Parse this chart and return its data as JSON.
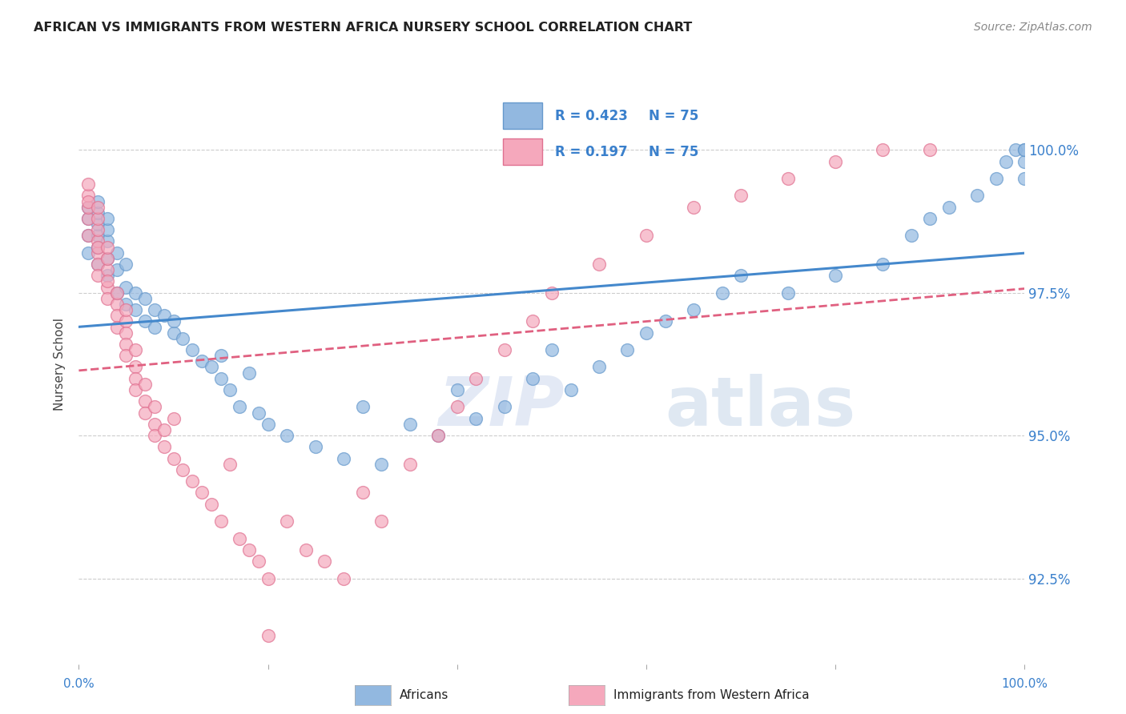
{
  "title": "AFRICAN VS IMMIGRANTS FROM WESTERN AFRICA NURSERY SCHOOL CORRELATION CHART",
  "source": "Source: ZipAtlas.com",
  "ylabel": "Nursery School",
  "ytick_values": [
    100.0,
    97.5,
    95.0,
    92.5
  ],
  "xlim": [
    0.0,
    100.0
  ],
  "ylim": [
    91.0,
    101.5
  ],
  "legend_entries": [
    "Africans",
    "Immigrants from Western Africa"
  ],
  "R_african": 0.423,
  "N_african": 75,
  "R_immigrant": 0.197,
  "N_immigrant": 75,
  "watermark_zip": "ZIP",
  "watermark_atlas": "atlas",
  "african_color": "#92b8e0",
  "african_edge_color": "#6699cc",
  "immigrant_color": "#f5a8bc",
  "immigrant_edge_color": "#e07090",
  "african_line_color": "#4488cc",
  "immigrant_line_color": "#e06080",
  "african_points_x": [
    1,
    1,
    1,
    1,
    2,
    2,
    2,
    2,
    2,
    2,
    3,
    3,
    3,
    3,
    3,
    4,
    4,
    4,
    5,
    5,
    5,
    6,
    6,
    7,
    7,
    8,
    8,
    9,
    10,
    10,
    11,
    12,
    13,
    14,
    15,
    15,
    16,
    17,
    18,
    19,
    20,
    22,
    25,
    28,
    30,
    32,
    35,
    38,
    40,
    42,
    45,
    48,
    50,
    52,
    55,
    58,
    60,
    62,
    65,
    68,
    70,
    75,
    80,
    85,
    88,
    90,
    92,
    95,
    97,
    98,
    99,
    100,
    100,
    100,
    100
  ],
  "african_points_y": [
    98.2,
    98.5,
    98.8,
    99.0,
    98.0,
    98.3,
    98.5,
    98.7,
    98.9,
    99.1,
    97.8,
    98.1,
    98.4,
    98.6,
    98.8,
    97.5,
    97.9,
    98.2,
    97.3,
    97.6,
    98.0,
    97.2,
    97.5,
    97.0,
    97.4,
    96.9,
    97.2,
    97.1,
    96.8,
    97.0,
    96.7,
    96.5,
    96.3,
    96.2,
    96.0,
    96.4,
    95.8,
    95.5,
    96.1,
    95.4,
    95.2,
    95.0,
    94.8,
    94.6,
    95.5,
    94.5,
    95.2,
    95.0,
    95.8,
    95.3,
    95.5,
    96.0,
    96.5,
    95.8,
    96.2,
    96.5,
    96.8,
    97.0,
    97.2,
    97.5,
    97.8,
    97.5,
    97.8,
    98.0,
    98.5,
    98.8,
    99.0,
    99.2,
    99.5,
    99.8,
    100.0,
    99.5,
    99.8,
    100.0,
    100.0
  ],
  "immigrant_points_x": [
    1,
    1,
    1,
    1,
    1,
    1,
    2,
    2,
    2,
    2,
    2,
    2,
    2,
    2,
    3,
    3,
    3,
    3,
    3,
    3,
    4,
    4,
    4,
    4,
    5,
    5,
    5,
    5,
    5,
    6,
    6,
    6,
    6,
    7,
    7,
    7,
    8,
    8,
    8,
    9,
    9,
    10,
    10,
    11,
    12,
    13,
    14,
    15,
    16,
    17,
    18,
    19,
    20,
    22,
    24,
    26,
    28,
    30,
    32,
    35,
    38,
    40,
    42,
    45,
    48,
    50,
    55,
    60,
    65,
    70,
    75,
    80,
    85,
    90,
    20
  ],
  "immigrant_points_y": [
    98.5,
    98.8,
    99.0,
    99.2,
    99.4,
    99.1,
    98.2,
    98.4,
    98.6,
    98.8,
    99.0,
    98.0,
    97.8,
    98.3,
    97.6,
    97.9,
    98.1,
    98.3,
    97.4,
    97.7,
    97.3,
    97.5,
    97.1,
    96.9,
    97.0,
    97.2,
    96.8,
    96.6,
    96.4,
    96.5,
    96.2,
    96.0,
    95.8,
    95.6,
    95.9,
    95.4,
    95.2,
    95.5,
    95.0,
    94.8,
    95.1,
    94.6,
    95.3,
    94.4,
    94.2,
    94.0,
    93.8,
    93.5,
    94.5,
    93.2,
    93.0,
    92.8,
    92.5,
    93.5,
    93.0,
    92.8,
    92.5,
    94.0,
    93.5,
    94.5,
    95.0,
    95.5,
    96.0,
    96.5,
    97.0,
    97.5,
    98.0,
    98.5,
    99.0,
    99.2,
    99.5,
    99.8,
    100.0,
    100.0,
    91.5
  ]
}
